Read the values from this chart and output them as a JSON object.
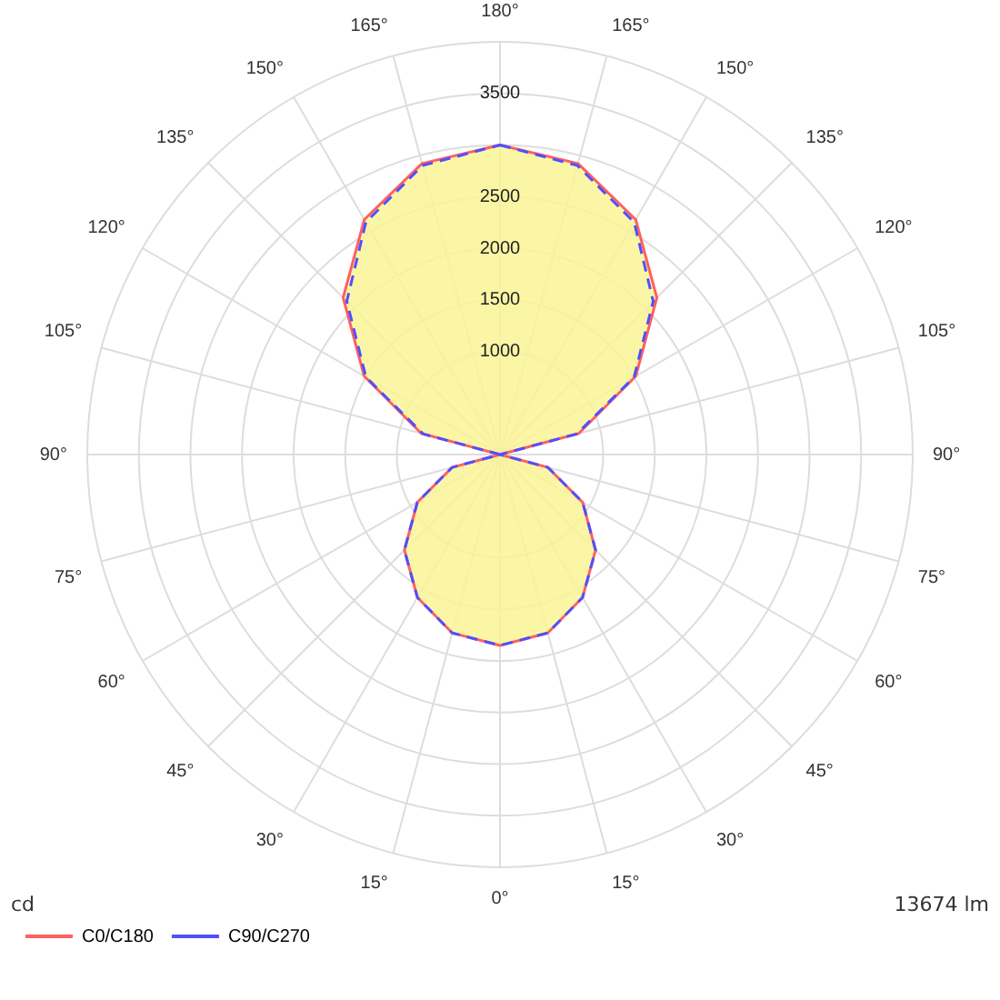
{
  "chart_data": {
    "type": "radar",
    "categories": [
      "180°",
      "165°",
      "150°",
      "135°",
      "120°",
      "105°",
      "90°",
      "75°",
      "60°",
      "45°",
      "30°",
      "15°",
      "0°",
      "15°",
      "30°",
      "45°",
      "60°",
      "75°",
      "90°",
      "105°",
      "120°",
      "135°",
      "150°",
      "165°"
    ],
    "series": [
      {
        "name": "C0/C180",
        "color": "#ff6060",
        "line_style": "solid",
        "values": [
          3000,
          2920,
          2630,
          2150,
          1520,
          790,
          0,
          480,
          925,
          1310,
          1600,
          1790,
          1850,
          1790,
          1600,
          1310,
          925,
          480,
          0,
          790,
          1520,
          2150,
          2630,
          2920
        ]
      },
      {
        "name": "C90/C270",
        "color": "#5050ff",
        "line_style": "dashed",
        "values": [
          3000,
          2900,
          2600,
          2100,
          1500,
          770,
          0,
          480,
          925,
          1310,
          1600,
          1790,
          1850,
          1790,
          1600,
          1310,
          925,
          480,
          0,
          770,
          1500,
          2100,
          2600,
          2900
        ]
      }
    ],
    "ylim": [
      0,
      4000
    ],
    "yticks": [
      1000,
      1500,
      2000,
      2500,
      3500
    ],
    "grid": true,
    "legend": "bottom left",
    "marker": "none",
    "annotations": [
      "cd",
      "13674 lm"
    ]
  }
}
